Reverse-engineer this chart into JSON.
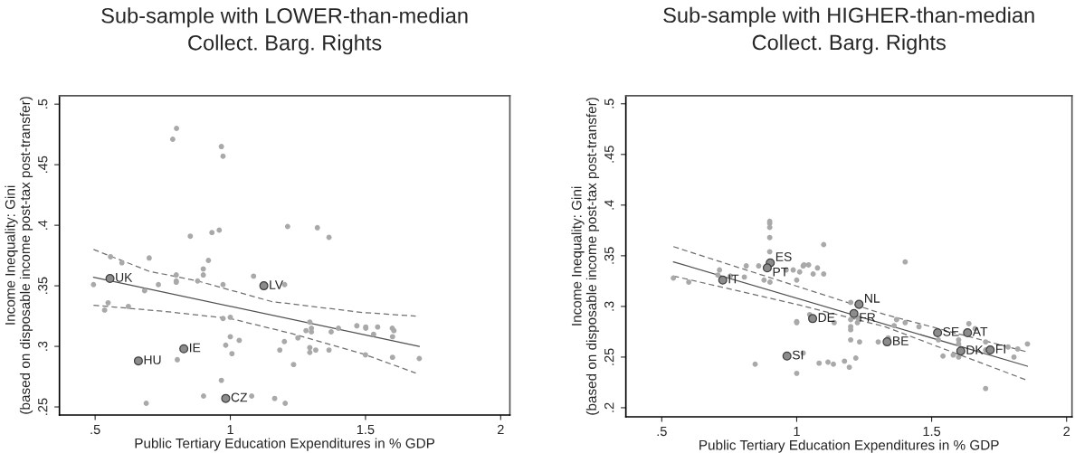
{
  "chart_data": [
    {
      "type": "scatter",
      "title": "Sub-sample with LOWER-than-median",
      "subtitle": "Collect. Barg. Rights",
      "xlabel": "Public Tertiary Education Expenditures in % GDP",
      "ylabel": "Income Inequality: Gini\n(based on disposable income post-tax post-transfer)",
      "xlim": [
        0.368,
        2.034
      ],
      "ylim": [
        0.2433,
        0.507
      ],
      "xticks": [
        {
          "value": 0.5,
          "label": ".5"
        },
        1,
        1.5,
        2
      ],
      "yticks": [
        {
          "value": 0.25,
          "label": ".25"
        },
        {
          "value": 0.3,
          "label": ".3"
        },
        {
          "value": 0.35,
          "label": ".35"
        },
        {
          "value": 0.4,
          "label": ".4"
        },
        {
          "value": 0.45,
          "label": ".45"
        },
        {
          "value": 0.5,
          "label": ".5"
        }
      ],
      "grid": false,
      "legend": false,
      "series": [
        {
          "type": "scatter",
          "color": "#a9a9a9",
          "marker": "circle",
          "x": [
            0.801,
            0.787,
            0.967,
            0.973,
            0.852,
            0.932,
            0.959,
            1.212,
            0.557,
            0.599,
            0.7,
            0.919,
            0.9,
            0.9,
            0.8,
            0.8,
            0.8,
            0.879,
            0.494,
            0.734,
            0.973,
            1.086,
            1.201,
            0.683,
            0.548,
            0.535,
            0.623,
            0.973,
            1.0,
            1.0,
            0.983,
            1.006,
            1.033,
            1.2,
            1.183,
            0.804,
            0.967,
            0.901,
            1.079,
            1.164,
            1.203,
            0.689,
            1.322,
            1.365,
            1.294,
            1.3,
            1.3,
            1.28,
            1.373,
            1.4,
            1.468,
            1.501,
            1.501,
            1.545,
            1.53,
            1.599,
            1.605,
            1.6,
            1.25,
            1.294,
            1.294,
            1.316,
            1.365,
            1.234,
            1.5,
            1.6,
            1.699
          ],
          "values": [
            0.48,
            0.471,
            0.465,
            0.457,
            0.391,
            0.394,
            0.396,
            0.399,
            0.374,
            0.369,
            0.373,
            0.371,
            0.364,
            0.359,
            0.359,
            0.354,
            0.353,
            0.354,
            0.351,
            0.351,
            0.351,
            0.358,
            0.351,
            0.346,
            0.336,
            0.33,
            0.333,
            0.323,
            0.324,
            0.308,
            0.301,
            0.294,
            0.305,
            0.304,
            0.297,
            0.289,
            0.272,
            0.259,
            0.259,
            0.257,
            0.253,
            0.253,
            0.398,
            0.39,
            0.32,
            0.315,
            0.312,
            0.313,
            0.312,
            0.315,
            0.317,
            0.316,
            0.315,
            0.316,
            0.31,
            0.315,
            0.313,
            0.308,
            0.307,
            0.299,
            0.295,
            0.297,
            0.297,
            0.285,
            0.293,
            0.291,
            0.29
          ]
        },
        {
          "type": "scatter",
          "color": "#8c8c8c",
          "marker": "circle",
          "x": [
            0.555,
            1.124,
            0.828,
            0.66,
            0.983
          ],
          "values": [
            0.356,
            0.35,
            0.298,
            0.288,
            0.257
          ]
        },
        {
          "type": "line",
          "color": "#505050",
          "line_style": "solid",
          "x": [
            0.494,
            1.699
          ],
          "values": [
            0.357,
            0.3
          ]
        },
        {
          "type": "line",
          "color": "#707070",
          "line_style": "dashed",
          "x": [
            0.494,
            0.7,
            0.879,
            1.153,
            1.488,
            1.686
          ],
          "values": [
            0.38,
            0.362,
            0.354,
            0.337,
            0.328,
            0.325
          ]
        },
        {
          "type": "line",
          "color": "#707070",
          "line_style": "dashed",
          "x": [
            0.494,
            0.75,
            1.0,
            1.22,
            1.488,
            1.686
          ],
          "values": [
            0.334,
            0.329,
            0.323,
            0.311,
            0.294,
            0.278
          ]
        }
      ],
      "annotations": [
        {
          "text": "UK",
          "x": 0.555,
          "y": 0.356
        },
        {
          "text": "LV",
          "x": 1.124,
          "y": 0.35
        },
        {
          "text": "IE",
          "x": 0.828,
          "y": 0.298
        },
        {
          "text": "HU",
          "x": 0.66,
          "y": 0.288
        },
        {
          "text": "CZ",
          "x": 0.983,
          "y": 0.257
        }
      ]
    },
    {
      "type": "scatter",
      "title": "Sub-sample with HIGHER-than-median",
      "subtitle": "Collect. Barg. Rights",
      "xlabel": "Public Tertiary Education Expenditures in % GDP",
      "ylabel": "Income Inequality: Gini\n(based on disposable income post-tax post-transfer)",
      "xlim": [
        0.367,
        2.02
      ],
      "ylim": [
        0.191,
        0.508
      ],
      "xticks": [
        {
          "value": 0.5,
          "label": ".5"
        },
        1,
        1.5,
        2
      ],
      "yticks": [
        {
          "value": 0.2,
          "label": ".2"
        },
        {
          "value": 0.25,
          "label": ".25"
        },
        {
          "value": 0.3,
          "label": ".3"
        },
        {
          "value": 0.35,
          "label": ".35"
        },
        {
          "value": 0.4,
          "label": ".4"
        },
        {
          "value": 0.45,
          "label": ".45"
        },
        {
          "value": 0.5,
          "label": ".5"
        }
      ],
      "grid": false,
      "legend": false,
      "series": [
        {
          "type": "scatter",
          "color": "#a9a9a9",
          "marker": "circle",
          "x": [
            0.9,
            0.9,
            0.9,
            0.9,
            0.9,
            0.543,
            0.6,
            0.714,
            0.708,
            0.754,
            0.806,
            0.813,
            0.859,
            0.879,
            0.901,
            0.961,
            0.987,
            1.0,
            1.011,
            1.024,
            1.0,
            0.846,
            1.0,
            1.024,
            1.1,
            1.402,
            1.027,
            1.044,
            1.061,
            1.077,
            1.1,
            1.2,
            1.2,
            1.2,
            1.2,
            1.225,
            1.225,
            1.139,
            1.0,
            1.048,
            1.2,
            1.233,
            1.302,
            1.339,
            1.37,
            1.402,
            1.361,
            1.453,
            1.525,
            1.638,
            1.661,
            1.6,
            1.6,
            1.7,
            1.7,
            1.783,
            1.819,
            1.855,
            1.805,
            1.542,
            1.58,
            1.6,
            1.7,
            1.083,
            1.116,
            1.136,
            1.177,
            1.195,
            1.219
          ],
          "values": [
            0.384,
            0.382,
            0.378,
            0.368,
            0.354,
            0.328,
            0.324,
            0.336,
            0.331,
            0.33,
            0.329,
            0.34,
            0.34,
            0.326,
            0.324,
            0.336,
            0.336,
            0.326,
            0.334,
            0.34,
            0.285,
            0.243,
            0.234,
            0.254,
            0.361,
            0.344,
            0.341,
            0.341,
            0.332,
            0.338,
            0.332,
            0.304,
            0.287,
            0.28,
            0.277,
            0.289,
            0.284,
            0.284,
            0.284,
            0.292,
            0.267,
            0.265,
            0.265,
            0.269,
            0.287,
            0.284,
            0.281,
            0.28,
            0.267,
            0.283,
            0.278,
            0.267,
            0.263,
            0.265,
            0.257,
            0.26,
            0.258,
            0.263,
            0.25,
            0.251,
            0.252,
            0.25,
            0.219,
            0.244,
            0.245,
            0.243,
            0.246,
            0.24,
            0.249
          ]
        },
        {
          "type": "scatter",
          "color": "#8c8c8c",
          "marker": "circle",
          "x": [
            0.902,
            0.891,
            0.726,
            0.964,
            1.231,
            1.212,
            1.059,
            1.335,
            1.522,
            1.633,
            1.608,
            1.717
          ],
          "values": [
            0.343,
            0.338,
            0.326,
            0.251,
            0.302,
            0.293,
            0.288,
            0.265,
            0.274,
            0.274,
            0.256,
            0.257
          ]
        },
        {
          "type": "line",
          "color": "#505050",
          "line_style": "solid",
          "x": [
            0.543,
            1.855
          ],
          "values": [
            0.344,
            0.241
          ]
        },
        {
          "type": "line",
          "color": "#707070",
          "line_style": "dashed",
          "x": [
            0.543,
            1.0,
            1.327,
            1.855
          ],
          "values": [
            0.359,
            0.32,
            0.292,
            0.255
          ]
        },
        {
          "type": "line",
          "color": "#707070",
          "line_style": "dashed",
          "x": [
            0.543,
            1.0,
            1.327,
            1.855
          ],
          "values": [
            0.33,
            0.302,
            0.28,
            0.227
          ]
        }
      ],
      "annotations": [
        {
          "text": "ES",
          "x": 0.902,
          "y": 0.343
        },
        {
          "text": "PT",
          "x": 0.891,
          "y": 0.338
        },
        {
          "text": "IT",
          "x": 0.726,
          "y": 0.326
        },
        {
          "text": "SI",
          "x": 0.964,
          "y": 0.251
        },
        {
          "text": "NL",
          "x": 1.231,
          "y": 0.302
        },
        {
          "text": "FR",
          "x": 1.212,
          "y": 0.293
        },
        {
          "text": "DE",
          "x": 1.059,
          "y": 0.288
        },
        {
          "text": "BE",
          "x": 1.335,
          "y": 0.265
        },
        {
          "text": "SE",
          "x": 1.522,
          "y": 0.274
        },
        {
          "text": "AT",
          "x": 1.633,
          "y": 0.274
        },
        {
          "text": "DK",
          "x": 1.608,
          "y": 0.256
        },
        {
          "text": "FI",
          "x": 1.717,
          "y": 0.257
        }
      ]
    }
  ]
}
